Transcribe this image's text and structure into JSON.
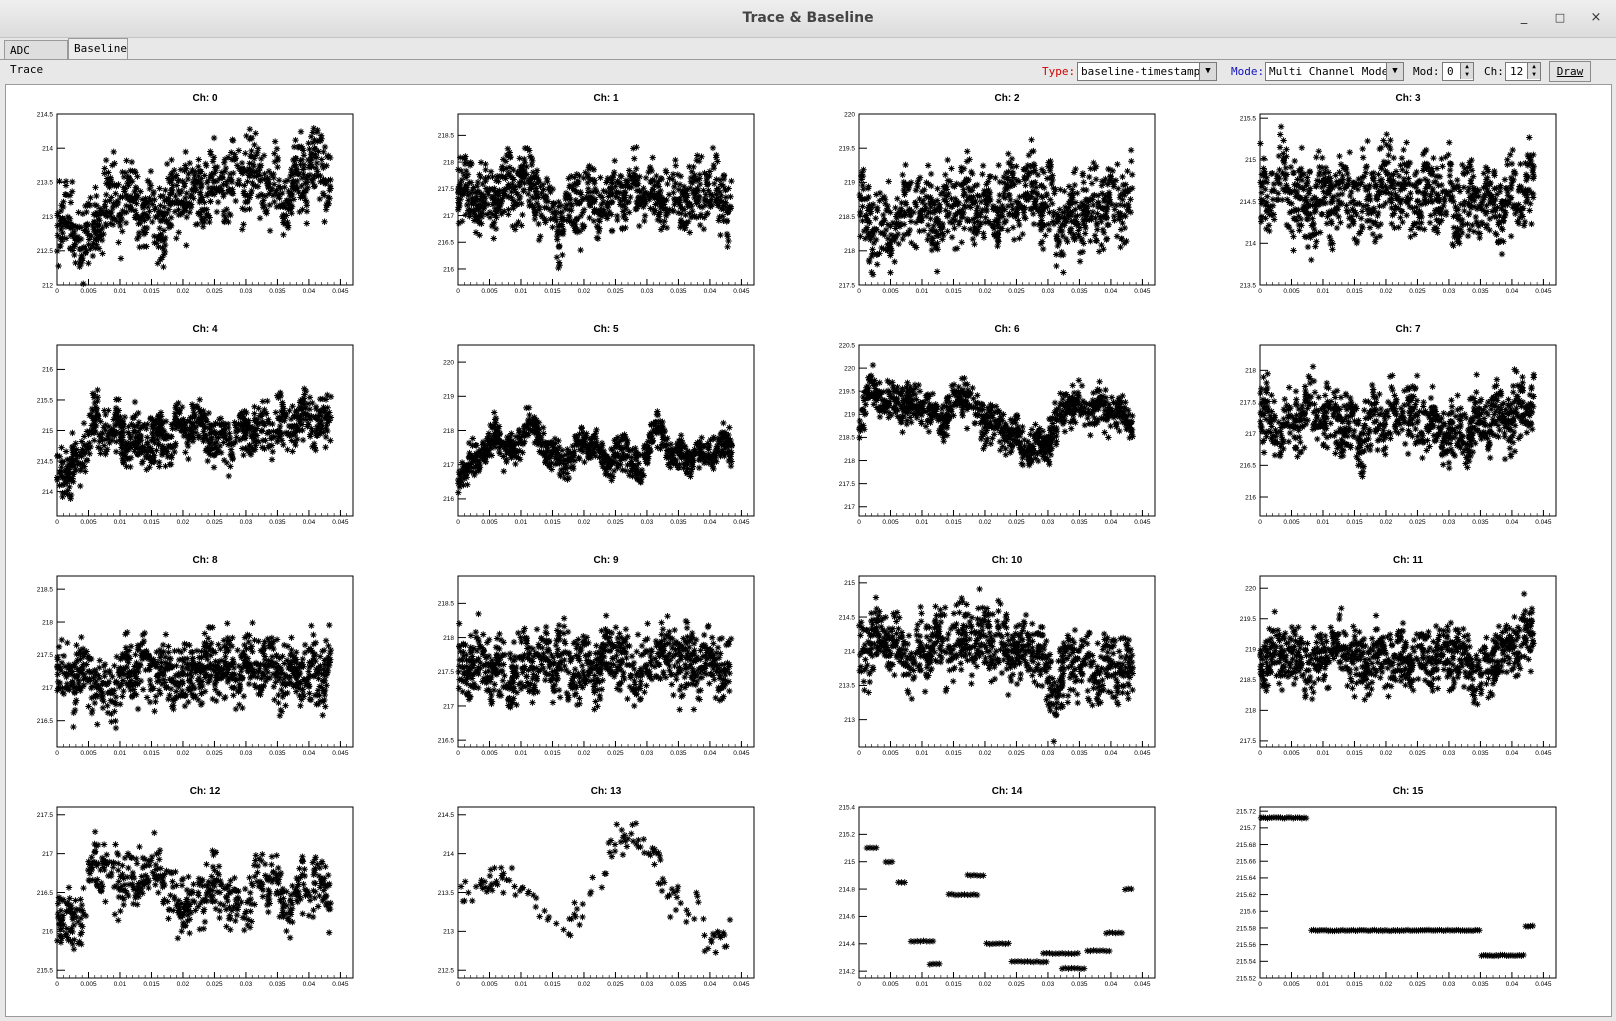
{
  "window": {
    "title": "Trace & Baseline",
    "minimize_symbol": "_",
    "maximize_symbol": "□",
    "close_symbol": "×"
  },
  "tabs": [
    {
      "label": "ADC Trace",
      "active": false
    },
    {
      "label": "Baseline",
      "active": true
    }
  ],
  "toolbar": {
    "type_label": "Type:",
    "type_value": "baseline-timestamp",
    "mode_label": "Mode:",
    "mode_value": "Multi Channel Mode",
    "mod_label": "Mod:",
    "mod_value": "0",
    "ch_label": "Ch:",
    "ch_value": "12",
    "draw_label": "Draw",
    "type_label_color": "#d00000",
    "mode_label_color": "#1010c0"
  },
  "chart_data": {
    "type": "scatter",
    "marker": "asterisk",
    "x_ticks": [
      "0",
      "0.005",
      "0.01",
      "0.015",
      "0.02",
      "0.025",
      "0.03",
      "0.035",
      "0.04",
      "0.045"
    ],
    "xlim": [
      0,
      0.047
    ],
    "x_data_range": [
      0,
      0.0435
    ],
    "panels": [
      {
        "title": "Ch: 0",
        "y_ticks": [
          "212",
          "212.5",
          "213",
          "213.5",
          "214",
          "214.5"
        ],
        "ylim": [
          212,
          214.5
        ],
        "profile": [
          [
            0,
            213.1
          ],
          [
            0.004,
            212.6
          ],
          [
            0.008,
            213.2
          ],
          [
            0.012,
            213.3
          ],
          [
            0.016,
            212.9
          ],
          [
            0.02,
            213.4
          ],
          [
            0.024,
            213.3
          ],
          [
            0.028,
            213.6
          ],
          [
            0.032,
            213.6
          ],
          [
            0.036,
            213.2
          ],
          [
            0.04,
            213.8
          ],
          [
            0.0435,
            213.6
          ]
        ],
        "spread": 0.45,
        "n": 900,
        "seed": 11
      },
      {
        "title": "Ch: 1",
        "y_ticks": [
          "216",
          "216.5",
          "217",
          "217.5",
          "218",
          "218.5"
        ],
        "ylim": [
          215.7,
          218.9
        ],
        "profile": [
          [
            0,
            217.6
          ],
          [
            0.004,
            217.3
          ],
          [
            0.008,
            217.5
          ],
          [
            0.012,
            217.6
          ],
          [
            0.016,
            216.9
          ],
          [
            0.02,
            217.4
          ],
          [
            0.024,
            217.2
          ],
          [
            0.028,
            217.6
          ],
          [
            0.032,
            217.3
          ],
          [
            0.036,
            217.3
          ],
          [
            0.04,
            217.5
          ],
          [
            0.0435,
            217.2
          ]
        ],
        "spread": 0.5,
        "n": 900,
        "seed": 12
      },
      {
        "title": "Ch: 2",
        "y_ticks": [
          "217.5",
          "218",
          "218.5",
          "219",
          "219.5",
          "220"
        ],
        "ylim": [
          217.5,
          220
        ],
        "profile": [
          [
            0,
            218.6
          ],
          [
            0.004,
            218.3
          ],
          [
            0.008,
            218.7
          ],
          [
            0.012,
            218.5
          ],
          [
            0.016,
            218.8
          ],
          [
            0.02,
            218.6
          ],
          [
            0.024,
            218.7
          ],
          [
            0.028,
            218.9
          ],
          [
            0.032,
            218.4
          ],
          [
            0.036,
            218.6
          ],
          [
            0.04,
            218.7
          ],
          [
            0.0435,
            218.8
          ]
        ],
        "spread": 0.45,
        "n": 900,
        "seed": 13
      },
      {
        "title": "Ch: 3",
        "y_ticks": [
          "213.5",
          "214",
          "214.5",
          "215",
          "215.5"
        ],
        "ylim": [
          213.5,
          215.55
        ],
        "profile": [
          [
            0,
            214.6
          ],
          [
            0.004,
            214.7
          ],
          [
            0.008,
            214.4
          ],
          [
            0.012,
            214.6
          ],
          [
            0.016,
            214.5
          ],
          [
            0.02,
            214.7
          ],
          [
            0.024,
            214.6
          ],
          [
            0.028,
            214.6
          ],
          [
            0.032,
            214.4
          ],
          [
            0.036,
            214.5
          ],
          [
            0.04,
            214.5
          ],
          [
            0.0435,
            214.7
          ]
        ],
        "spread": 0.4,
        "n": 900,
        "seed": 14
      },
      {
        "title": "Ch: 4",
        "y_ticks": [
          "214",
          "214.5",
          "215",
          "215.5",
          "216"
        ],
        "ylim": [
          213.6,
          216.4
        ],
        "profile": [
          [
            0,
            214.3
          ],
          [
            0.003,
            214.4
          ],
          [
            0.006,
            215.1
          ],
          [
            0.01,
            214.9
          ],
          [
            0.014,
            214.8
          ],
          [
            0.018,
            214.9
          ],
          [
            0.022,
            215.1
          ],
          [
            0.026,
            214.8
          ],
          [
            0.03,
            215.0
          ],
          [
            0.034,
            215.0
          ],
          [
            0.038,
            215.2
          ],
          [
            0.0435,
            215.1
          ]
        ],
        "spread": 0.35,
        "n": 900,
        "seed": 15
      },
      {
        "title": "Ch: 5",
        "y_ticks": [
          "216",
          "217",
          "218",
          "219",
          "220"
        ],
        "ylim": [
          215.5,
          220.5
        ],
        "profile": [
          [
            0,
            216.6
          ],
          [
            0.003,
            217.2
          ],
          [
            0.006,
            217.8
          ],
          [
            0.009,
            217.3
          ],
          [
            0.011,
            218.3
          ],
          [
            0.014,
            217.5
          ],
          [
            0.017,
            217.0
          ],
          [
            0.02,
            217.7
          ],
          [
            0.024,
            217.1
          ],
          [
            0.027,
            217.4
          ],
          [
            0.029,
            216.6
          ],
          [
            0.031,
            218.3
          ],
          [
            0.034,
            217.2
          ],
          [
            0.038,
            217.3
          ],
          [
            0.0435,
            217.6
          ]
        ],
        "spread": 0.4,
        "n": 900,
        "seed": 16
      },
      {
        "title": "Ch: 6",
        "y_ticks": [
          "217",
          "217.5",
          "218",
          "218.5",
          "219",
          "219.5",
          "220",
          "220.5"
        ],
        "ylim": [
          216.8,
          220.5
        ],
        "profile": [
          [
            0,
            218.8
          ],
          [
            0.002,
            219.6
          ],
          [
            0.005,
            219.2
          ],
          [
            0.01,
            219.2
          ],
          [
            0.013,
            218.8
          ],
          [
            0.016,
            219.5
          ],
          [
            0.02,
            218.9
          ],
          [
            0.024,
            218.6
          ],
          [
            0.027,
            218.2
          ],
          [
            0.03,
            218.4
          ],
          [
            0.033,
            219.2
          ],
          [
            0.037,
            219.1
          ],
          [
            0.04,
            219.1
          ],
          [
            0.0435,
            218.9
          ]
        ],
        "spread": 0.35,
        "n": 900,
        "seed": 17
      },
      {
        "title": "Ch: 7",
        "y_ticks": [
          "216",
          "216.5",
          "217",
          "217.5",
          "218"
        ],
        "ylim": [
          215.7,
          218.4
        ],
        "profile": [
          [
            0,
            217.3
          ],
          [
            0.004,
            217.0
          ],
          [
            0.008,
            217.4
          ],
          [
            0.012,
            217.2
          ],
          [
            0.016,
            217.0
          ],
          [
            0.02,
            217.2
          ],
          [
            0.024,
            217.3
          ],
          [
            0.028,
            217.1
          ],
          [
            0.032,
            217.0
          ],
          [
            0.036,
            217.2
          ],
          [
            0.04,
            217.3
          ],
          [
            0.0435,
            217.5
          ]
        ],
        "spread": 0.4,
        "n": 900,
        "seed": 18
      },
      {
        "title": "Ch: 8",
        "y_ticks": [
          "216.5",
          "217",
          "217.5",
          "218",
          "218.5"
        ],
        "ylim": [
          216.1,
          218.7
        ],
        "profile": [
          [
            0,
            217.1
          ],
          [
            0.004,
            217.2
          ],
          [
            0.008,
            216.9
          ],
          [
            0.012,
            217.3
          ],
          [
            0.016,
            217.3
          ],
          [
            0.02,
            217.1
          ],
          [
            0.024,
            217.4
          ],
          [
            0.028,
            217.3
          ],
          [
            0.032,
            217.4
          ],
          [
            0.036,
            217.2
          ],
          [
            0.04,
            217.2
          ],
          [
            0.0435,
            217.3
          ]
        ],
        "spread": 0.4,
        "n": 900,
        "seed": 19
      },
      {
        "title": "Ch: 9",
        "y_ticks": [
          "216.5",
          "217",
          "217.5",
          "218",
          "218.5"
        ],
        "ylim": [
          216.4,
          218.9
        ],
        "profile": [
          [
            0,
            217.6
          ],
          [
            0.004,
            217.7
          ],
          [
            0.008,
            217.5
          ],
          [
            0.012,
            217.6
          ],
          [
            0.016,
            217.6
          ],
          [
            0.02,
            217.5
          ],
          [
            0.024,
            217.8
          ],
          [
            0.028,
            217.5
          ],
          [
            0.032,
            217.8
          ],
          [
            0.036,
            217.6
          ],
          [
            0.04,
            217.6
          ],
          [
            0.0435,
            217.5
          ]
        ],
        "spread": 0.4,
        "n": 900,
        "seed": 20
      },
      {
        "title": "Ch: 10",
        "y_ticks": [
          "213",
          "213.5",
          "214",
          "214.5",
          "215"
        ],
        "ylim": [
          212.6,
          215.1
        ],
        "profile": [
          [
            0,
            214.0
          ],
          [
            0.004,
            214.2
          ],
          [
            0.008,
            213.9
          ],
          [
            0.012,
            214.1
          ],
          [
            0.016,
            214.1
          ],
          [
            0.02,
            214.2
          ],
          [
            0.024,
            214.0
          ],
          [
            0.028,
            214.1
          ],
          [
            0.031,
            213.4
          ],
          [
            0.034,
            213.9
          ],
          [
            0.037,
            213.7
          ],
          [
            0.04,
            213.8
          ],
          [
            0.0435,
            213.7
          ]
        ],
        "spread": 0.4,
        "n": 900,
        "seed": 21
      },
      {
        "title": "Ch: 11",
        "y_ticks": [
          "217.5",
          "218",
          "218.5",
          "219",
          "219.5",
          "220"
        ],
        "ylim": [
          217.4,
          220.2
        ],
        "profile": [
          [
            0,
            218.8
          ],
          [
            0.004,
            219.0
          ],
          [
            0.008,
            218.7
          ],
          [
            0.012,
            219.1
          ],
          [
            0.016,
            218.7
          ],
          [
            0.02,
            218.9
          ],
          [
            0.024,
            218.8
          ],
          [
            0.028,
            219.0
          ],
          [
            0.032,
            218.9
          ],
          [
            0.035,
            218.5
          ],
          [
            0.038,
            218.9
          ],
          [
            0.0435,
            219.3
          ]
        ],
        "spread": 0.4,
        "n": 900,
        "seed": 22
      },
      {
        "title": "Ch: 12",
        "y_ticks": [
          "215.5",
          "216",
          "216.5",
          "217",
          "217.5"
        ],
        "ylim": [
          215.4,
          217.6
        ],
        "profile": [
          [
            0,
            216.3
          ],
          [
            0.003,
            216.0
          ],
          [
            0.006,
            216.9
          ],
          [
            0.009,
            216.7
          ],
          [
            0.012,
            216.6
          ],
          [
            0.016,
            216.8
          ],
          [
            0.019,
            216.3
          ],
          [
            0.023,
            216.5
          ],
          [
            0.026,
            216.6
          ],
          [
            0.029,
            216.3
          ],
          [
            0.033,
            216.8
          ],
          [
            0.036,
            216.4
          ],
          [
            0.04,
            216.6
          ],
          [
            0.0435,
            216.5
          ]
        ],
        "spread": 0.3,
        "n": 600,
        "seed": 23
      },
      {
        "title": "Ch: 13",
        "y_ticks": [
          "212.5",
          "213",
          "213.5",
          "214",
          "214.5"
        ],
        "ylim": [
          212.4,
          214.6
        ],
        "profile": [
          [
            0,
            213.4
          ],
          [
            0.005,
            213.6
          ],
          [
            0.009,
            213.7
          ],
          [
            0.013,
            213.4
          ],
          [
            0.016,
            212.9
          ],
          [
            0.019,
            213.2
          ],
          [
            0.022,
            213.6
          ],
          [
            0.025,
            214.2
          ],
          [
            0.028,
            214.2
          ],
          [
            0.031,
            214.0
          ],
          [
            0.034,
            213.4
          ],
          [
            0.038,
            213.3
          ],
          [
            0.041,
            212.8
          ],
          [
            0.0435,
            213.1
          ]
        ],
        "spread": 0.18,
        "n": 140,
        "seed": 24
      },
      {
        "title": "Ch: 14",
        "y_ticks": [
          "214.2",
          "214.4",
          "214.6",
          "214.8",
          "215",
          "215.2",
          "215.4"
        ],
        "ylim": [
          214.15,
          215.4
        ],
        "discrete": [
          {
            "x": [
              0.001,
              0.003
            ],
            "y": 215.1
          },
          {
            "x": [
              0.004,
              0.0055
            ],
            "y": 215.0
          },
          {
            "x": [
              0.006,
              0.0075
            ],
            "y": 214.85
          },
          {
            "x": [
              0.008,
              0.012
            ],
            "y": 214.42
          },
          {
            "x": [
              0.011,
              0.013
            ],
            "y": 214.25
          },
          {
            "x": [
              0.014,
              0.019
            ],
            "y": 214.76
          },
          {
            "x": [
              0.017,
              0.02
            ],
            "y": 214.9
          },
          {
            "x": [
              0.02,
              0.024
            ],
            "y": 214.4
          },
          {
            "x": [
              0.024,
              0.03
            ],
            "y": 214.27
          },
          {
            "x": [
              0.029,
              0.035
            ],
            "y": 214.33
          },
          {
            "x": [
              0.032,
              0.036
            ],
            "y": 214.22
          },
          {
            "x": [
              0.036,
              0.04
            ],
            "y": 214.35
          },
          {
            "x": [
              0.039,
              0.042
            ],
            "y": 214.48
          },
          {
            "x": [
              0.042,
              0.0435
            ],
            "y": 214.8
          }
        ],
        "n": 90,
        "seed": 25
      },
      {
        "title": "Ch: 15",
        "y_ticks": [
          "215.52",
          "215.54",
          "215.56",
          "215.58",
          "215.6",
          "215.62",
          "215.64",
          "215.66",
          "215.68",
          "215.7",
          "215.72"
        ],
        "ylim": [
          215.52,
          215.725
        ],
        "discrete": [
          {
            "x": [
              0,
              0.0075
            ],
            "y": 215.712
          },
          {
            "x": [
              0.008,
              0.035
            ],
            "y": 215.577
          },
          {
            "x": [
              0.035,
              0.042
            ],
            "y": 215.547
          },
          {
            "x": [
              0.042,
              0.0435
            ],
            "y": 215.582
          }
        ],
        "n": 130,
        "seed": 26
      }
    ]
  }
}
